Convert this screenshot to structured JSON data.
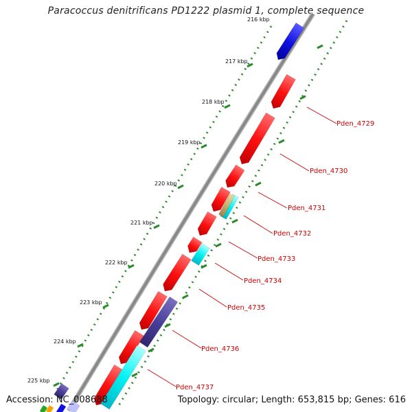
{
  "title": "Paracoccus denitrificans PD1222 plasmid 1, complete sequence",
  "footer": {
    "accession": "Accession: NC_008688",
    "summary": "Topology: circular; Length: 653,815 bp; Genes: 616"
  },
  "ruler": {
    "labels": [
      "216 kbp",
      "217 kbp",
      "218 kbp",
      "219 kbp",
      "220 kbp",
      "221 kbp",
      "222 kbp",
      "223 kbp",
      "224 kbp",
      "225 kbp"
    ]
  },
  "gene_labels": [
    "Pden_4729",
    "Pden_4730",
    "Pden_4731",
    "Pden_4732",
    "Pden_4733",
    "Pden_4734",
    "Pden_4735",
    "Pden_4736",
    "Pden_4737"
  ],
  "colors": {
    "cds_red": "#ff1a1a",
    "cds_blue": "#1010e0",
    "cds_cyan": "#00f2f2",
    "cds_purple": "#4a3f9a",
    "cds_tan": "#c8b070",
    "backbone": "#888888",
    "tick": "#2a8a2a",
    "label": "#cc0000"
  }
}
